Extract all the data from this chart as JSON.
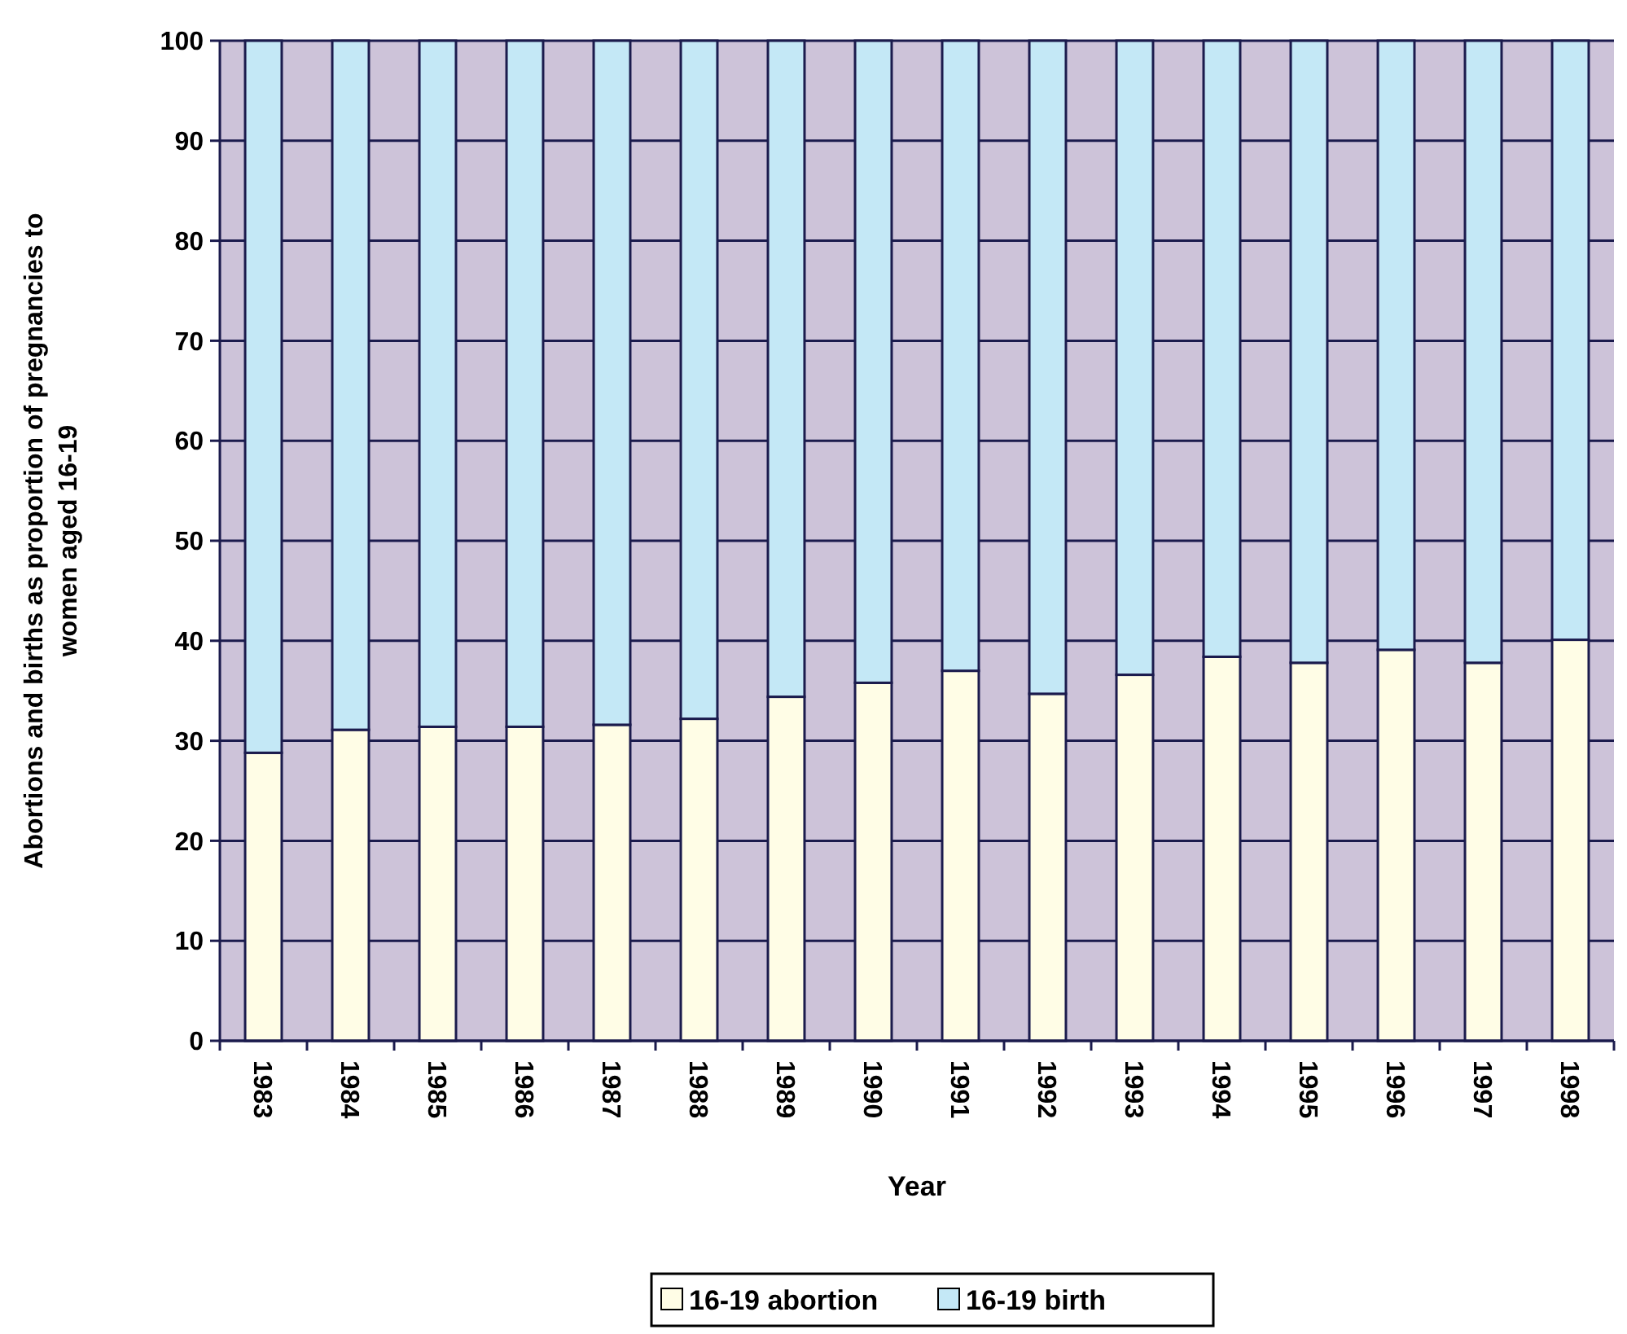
{
  "chart_data": {
    "type": "bar",
    "stacked": true,
    "xlabel": "Year",
    "ylabel": "Abortions and births as proportion of pregnancies to women aged 16-19",
    "categories": [
      "1983",
      "1984",
      "1985",
      "1986",
      "1987",
      "1988",
      "1989",
      "1990",
      "1991",
      "1992",
      "1993",
      "1994",
      "1995",
      "1996",
      "1997",
      "1998"
    ],
    "series": [
      {
        "name": "16-19 abortion",
        "color": "#fffde6",
        "values": [
          28.8,
          31.1,
          31.4,
          31.4,
          31.6,
          32.2,
          34.4,
          35.8,
          37.0,
          34.7,
          36.6,
          38.4,
          37.8,
          39.1,
          37.8,
          40.1
        ]
      },
      {
        "name": "16-19 birth",
        "color": "#c4e8f6",
        "values": [
          71.2,
          68.9,
          68.6,
          68.6,
          68.4,
          67.8,
          65.6,
          64.2,
          63.0,
          65.3,
          63.4,
          61.6,
          62.2,
          60.9,
          62.2,
          59.9
        ]
      }
    ],
    "ylim": [
      0,
      100
    ],
    "yticks": [
      0,
      10,
      20,
      30,
      40,
      50,
      60,
      70,
      80,
      90,
      100
    ],
    "grid": "y",
    "legend": "bottom"
  }
}
